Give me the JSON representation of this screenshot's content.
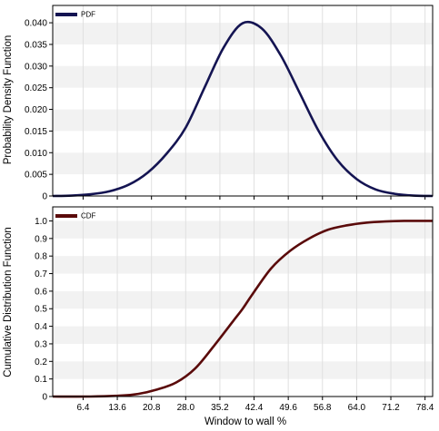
{
  "colors": {
    "pdf": "#141452",
    "cdf": "#5a0a0a",
    "band": "#f2f2f2",
    "grid": "#e0e0e0",
    "frame": "#000000"
  },
  "chart_data": [
    {
      "type": "line",
      "ylabel": "Probability Density Function",
      "xlim": [
        0,
        80
      ],
      "ylim": [
        0,
        0.044
      ],
      "yticks": [
        0,
        0.005,
        0.01,
        0.015,
        0.02,
        0.025,
        0.03,
        0.035,
        0.04
      ],
      "ytick_labels": [
        "0",
        "0.005",
        "0.010",
        "0.015",
        "0.020",
        "0.025",
        "0.030",
        "0.035",
        "0.040"
      ],
      "legend": "top-left",
      "grid": true,
      "series": [
        {
          "name": "PDF",
          "x": [
            0,
            4,
            8,
            12,
            16,
            20,
            24,
            28,
            32,
            36,
            40,
            44,
            48,
            52,
            56,
            60,
            64,
            68,
            72,
            76,
            80
          ],
          "values": [
            0.0,
            0.0001,
            0.0004,
            0.0011,
            0.0026,
            0.0054,
            0.0098,
            0.0158,
            0.0251,
            0.0343,
            0.0399,
            0.0387,
            0.0325,
            0.0238,
            0.015,
            0.0082,
            0.0039,
            0.0015,
            0.0005,
            0.0001,
            0.0
          ]
        }
      ]
    },
    {
      "type": "line",
      "ylabel": "Cumulative Distribution Function",
      "xlabel": "Window to wall %",
      "xlim": [
        0,
        80
      ],
      "ylim": [
        0,
        1.08
      ],
      "xticks": [
        6.4,
        13.6,
        20.8,
        28.0,
        35.2,
        42.4,
        49.6,
        56.8,
        64.0,
        71.2,
        78.4
      ],
      "xtick_labels": [
        "6.4",
        "13.6",
        "20.8",
        "28.0",
        "35.2",
        "42.4",
        "49.6",
        "56.8",
        "64.0",
        "71.2",
        "78.4"
      ],
      "yticks": [
        0,
        0.1,
        0.2,
        0.3,
        0.4,
        0.5,
        0.6,
        0.7,
        0.8,
        0.9,
        1.0
      ],
      "ytick_labels": [
        "0",
        "0.1",
        "0.2",
        "0.3",
        "0.4",
        "0.5",
        "0.6",
        "0.7",
        "0.8",
        "0.9",
        "1.0"
      ],
      "legend": "top-left",
      "grid": true,
      "series": [
        {
          "name": "CDF",
          "x": [
            0,
            8,
            14,
            18,
            22,
            26,
            30,
            34,
            38,
            40,
            42,
            46,
            50,
            54,
            58,
            62,
            66,
            70,
            74,
            80
          ],
          "values": [
            0.0,
            0.0,
            0.005,
            0.015,
            0.04,
            0.08,
            0.16,
            0.29,
            0.43,
            0.5,
            0.58,
            0.73,
            0.83,
            0.9,
            0.95,
            0.975,
            0.99,
            0.997,
            1.0,
            1.0
          ]
        }
      ]
    }
  ]
}
